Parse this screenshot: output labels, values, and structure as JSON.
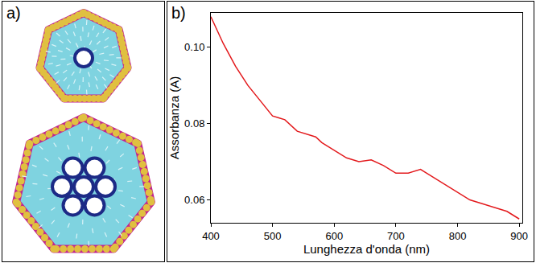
{
  "diagram": {
    "panel_label": "a)"
  },
  "chart_data": {
    "type": "line",
    "panel_label": "b)",
    "x_label": "Lunghezza d'onda (nm)",
    "y_label": "Assorbanza (A)",
    "x": [
      400,
      420,
      440,
      460,
      480,
      500,
      510,
      520,
      540,
      560,
      570,
      580,
      600,
      620,
      640,
      660,
      680,
      700,
      720,
      740,
      750,
      770,
      800,
      820,
      840,
      860,
      880,
      890,
      900
    ],
    "values": [
      0.108,
      0.101,
      0.095,
      0.09,
      0.086,
      0.082,
      0.0815,
      0.081,
      0.078,
      0.077,
      0.0765,
      0.075,
      0.073,
      0.071,
      0.07,
      0.0705,
      0.069,
      0.067,
      0.067,
      0.068,
      0.067,
      0.065,
      0.062,
      0.06,
      0.059,
      0.058,
      0.057,
      0.056,
      0.055
    ],
    "color": "#e3191c",
    "xlim": [
      400,
      905
    ],
    "ylim": [
      0.054,
      0.109
    ],
    "xticks": [
      400,
      500,
      600,
      700,
      800,
      900
    ],
    "yticks": [
      0.06,
      0.08,
      {
        "value": 0.1,
        "label": "0.10"
      }
    ],
    "grid": false
  }
}
